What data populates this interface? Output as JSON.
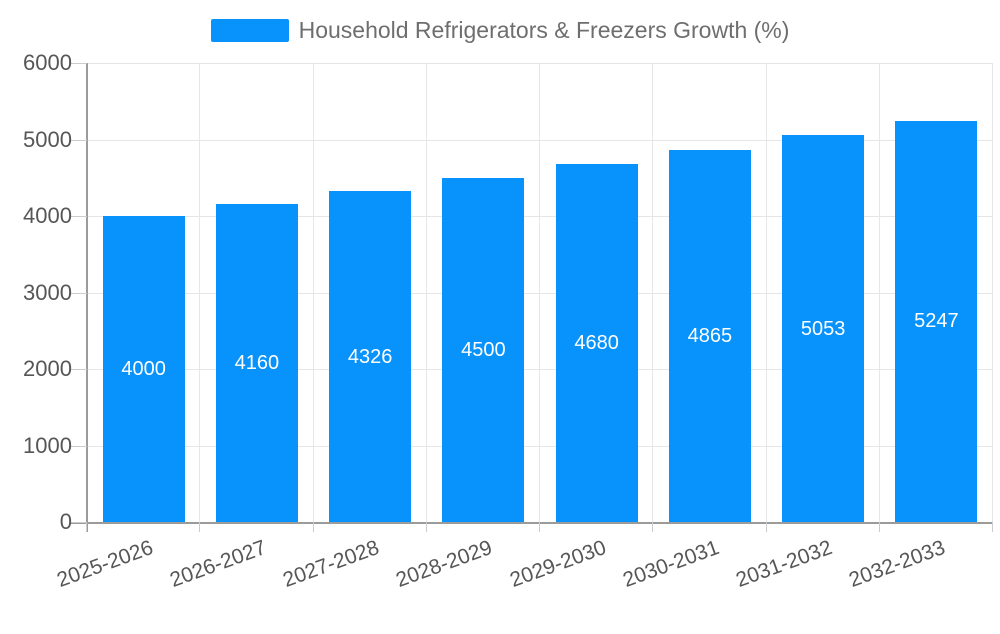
{
  "chart_data": {
    "type": "bar",
    "title": "Household Refrigerators & Freezers Growth (%)",
    "series_name": "Household Refrigerators & Freezers Growth (%)",
    "categories": [
      "2025-2026",
      "2026-2027",
      "2027-2028",
      "2028-2029",
      "2029-2030",
      "2030-2031",
      "2031-2032",
      "2032-2033"
    ],
    "values": [
      4000,
      4160,
      4326,
      4500,
      4680,
      4865,
      5053,
      5247
    ],
    "yticks": [
      0,
      1000,
      2000,
      3000,
      4000,
      5000,
      6000
    ],
    "ylim": [
      0,
      6000
    ],
    "ytick_step": 1000,
    "xlabel": "",
    "ylabel": "",
    "grid": true,
    "legend_position": "top-center",
    "value_label_position": "inside-center",
    "xlabel_rotation_deg": -20,
    "colors": {
      "bar": "#0892fb",
      "bar_value_text": "#ffffff",
      "axis_line": "#9b9b9b",
      "grid_line": "#e6e6e6",
      "tick_line": "#cccccc",
      "axis_text": "#565656",
      "legend_text": "#6e6e6e",
      "background": "#ffffff"
    }
  }
}
